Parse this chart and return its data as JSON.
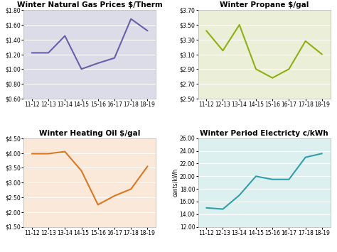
{
  "categories": [
    "11-12",
    "12-13",
    "13-14",
    "14-15",
    "15-16",
    "16-17",
    "17-18",
    "18-19"
  ],
  "gas": [
    1.22,
    1.22,
    1.45,
    1.0,
    1.08,
    1.15,
    1.68,
    1.52
  ],
  "gas_color": "#6B5EA8",
  "gas_bg": "#DCDCE8",
  "gas_title": "Winter Natural Gas Prices $/Therm",
  "gas_ylim": [
    0.6,
    1.8
  ],
  "gas_yticks": [
    0.6,
    0.8,
    1.0,
    1.2,
    1.4,
    1.6,
    1.8
  ],
  "propane": [
    3.42,
    3.15,
    3.5,
    2.9,
    2.78,
    2.9,
    3.28,
    3.1
  ],
  "propane_color": "#8DB010",
  "propane_bg": "#ECEFD8",
  "propane_title": "Winter Propane $/gal",
  "propane_ylim": [
    2.5,
    3.7
  ],
  "propane_yticks": [
    2.5,
    2.7,
    2.9,
    3.1,
    3.3,
    3.5,
    3.7
  ],
  "oil": [
    3.98,
    3.98,
    4.05,
    3.4,
    2.25,
    2.55,
    2.78,
    3.55
  ],
  "oil_color": "#D97820",
  "oil_bg": "#FAE8D8",
  "oil_title": "Winter Heating Oil $/gal",
  "oil_ylim": [
    1.5,
    4.5
  ],
  "oil_yticks": [
    1.5,
    2.0,
    2.5,
    3.0,
    3.5,
    4.0,
    4.5
  ],
  "elec": [
    15.0,
    14.8,
    17.0,
    20.0,
    19.5,
    19.5,
    23.0,
    23.6
  ],
  "elec_color": "#30A0A8",
  "elec_bg": "#DDF0F0",
  "elec_title": "Winter Period Electricty c/kWh",
  "elec_ylim": [
    12.0,
    26.0
  ],
  "elec_yticks": [
    12.0,
    14.0,
    16.0,
    18.0,
    20.0,
    22.0,
    24.0,
    26.0
  ],
  "elec_ylabel": "cents/kWh",
  "outer_bg": "#FFFFFF",
  "panel_bg": "#FFFFFF",
  "title_fontsize": 7.5,
  "tick_fontsize": 5.5,
  "line_width": 1.5
}
